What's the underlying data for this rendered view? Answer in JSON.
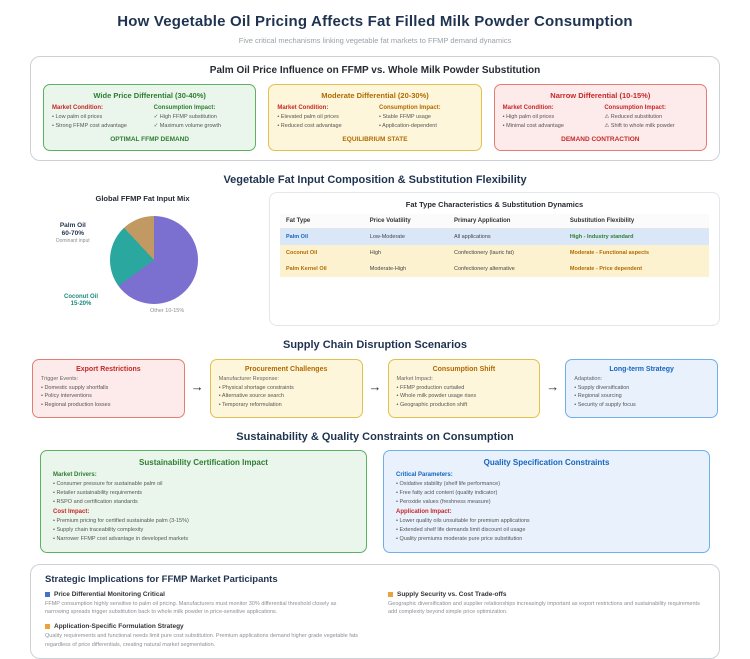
{
  "page": {
    "title": "How Vegetable Oil Pricing Affects Fat Filled Milk Powder Consumption",
    "subtitle": "Five critical mechanisms linking vegetable fat markets to FFMP demand dynamics"
  },
  "colors": {
    "accent_navy": "#1f3350",
    "green": "#2e7d32",
    "orange": "#b26a00",
    "red": "#c62828",
    "blue": "#1565c0",
    "pie_palm": "#7b6fd0",
    "pie_coconut": "#2aa79e",
    "pie_other": "#c09a62"
  },
  "section1": {
    "title": "Palm Oil Price Influence on FFMP vs. Whole Milk Powder Substitution",
    "cards": [
      {
        "title": "Wide Price Differential (30-40%)",
        "left_header": "Market Condition:",
        "left_items": [
          "• Low palm oil prices",
          "• Strong FFMP cost advantage"
        ],
        "right_header": "Consumption Impact:",
        "right_items": [
          "✓ High FFMP substitution",
          "✓ Maximum volume growth"
        ],
        "footer": "OPTIMAL FFMP DEMAND"
      },
      {
        "title": "Moderate Differential (20-30%)",
        "left_header": "Market Condition:",
        "left_items": [
          "• Elevated palm oil prices",
          "• Reduced cost advantage"
        ],
        "right_header": "Consumption Impact:",
        "right_items": [
          "• Stable FFMP usage",
          "• Application-dependent"
        ],
        "footer": "EQUILIBRIUM STATE"
      },
      {
        "title": "Narrow Differential (10-15%)",
        "left_header": "Market Condition:",
        "left_items": [
          "• High palm oil prices",
          "• Minimal cost advantage"
        ],
        "right_header": "Consumption Impact:",
        "right_items": [
          "⚠ Reduced substitution",
          "⚠ Shift to whole milk powder"
        ],
        "footer": "DEMAND CONTRACTION"
      }
    ]
  },
  "section2": {
    "title": "Vegetable Fat Input Composition & Substitution Flexibility",
    "pie_title": "Global FFMP Fat Input Mix",
    "pie_labels": {
      "palm_name": "Palm Oil",
      "palm_range": "60-70%",
      "palm_note": "Dominant input",
      "coconut_name": "Coconut Oil",
      "coconut_range": "15-20%",
      "other_label": "Other 10-15%"
    },
    "table": {
      "title": "Fat Type Characteristics & Substitution Dynamics",
      "headers": [
        "Fat Type",
        "Price Volatility",
        "Primary Application",
        "Substitution Flexibility"
      ],
      "rows": [
        {
          "cells": [
            "Palm Oil",
            "Low-Moderate",
            "All applications",
            "High - Industry standard"
          ]
        },
        {
          "cells": [
            "Coconut Oil",
            "High",
            "Confectionery (lauric fat)",
            "Moderate - Functional aspects"
          ]
        },
        {
          "cells": [
            "Palm Kernel Oil",
            "Moderate-High",
            "Confectionery alternative",
            "Moderate - Price dependent"
          ]
        }
      ]
    }
  },
  "chart_data": {
    "type": "pie",
    "title": "Global FFMP Fat Input Mix",
    "slices": [
      {
        "label": "Palm Oil",
        "range": "60-70%",
        "value": 65,
        "note": "Dominant input",
        "color": "#7b6fd0"
      },
      {
        "label": "Coconut Oil",
        "range": "15-20%",
        "value": 20,
        "color": "#2aa79e"
      },
      {
        "label": "Other",
        "range": "10-15%",
        "value": 15,
        "color": "#c09a62"
      }
    ],
    "legend_position": "labels-around-pie"
  },
  "section3": {
    "title": "Supply Chain Disruption Scenarios",
    "arrow": "→",
    "cards": [
      {
        "title": "Export Restrictions",
        "header": "Trigger Events:",
        "items": [
          "• Domestic supply shortfalls",
          "• Policy interventions",
          "• Regional production losses"
        ]
      },
      {
        "title": "Procurement Challenges",
        "header": "Manufacturer Response:",
        "items": [
          "• Physical shortage constraints",
          "• Alternative source search",
          "• Temporary reformulation"
        ]
      },
      {
        "title": "Consumption Shift",
        "header": "Market Impact:",
        "items": [
          "• FFMP production curtailed",
          "• Whole milk powder usage rises",
          "• Geographic production shift"
        ]
      },
      {
        "title": "Long-term Strategy",
        "header": "Adaptation:",
        "items": [
          "• Supply diversification",
          "• Regional sourcing",
          "• Security of supply focus"
        ]
      }
    ]
  },
  "section4": {
    "title": "Sustainability & Quality Constraints on Consumption",
    "cards": [
      {
        "title": "Sustainability Certification Impact",
        "h1": "Market Drivers:",
        "items1": [
          "• Consumer pressure for sustainable palm oil",
          "• Retailer sustainability requirements",
          "• RSPO and certification standards"
        ],
        "h2": "Cost Impact:",
        "items2": [
          "• Premium pricing for certified sustainable palm (3-15%)",
          "• Supply chain traceability complexity",
          "• Narrower FFMP cost advantage in developed markets"
        ]
      },
      {
        "title": "Quality Specification Constraints",
        "h1": "Critical Parameters:",
        "items1": [
          "• Oxidative stability (shelf life performance)",
          "• Free fatty acid content (quality indicator)",
          "• Peroxide values (freshness measure)"
        ],
        "h2": "Application Impact:",
        "items2": [
          "• Lower quality oils unsuitable for premium applications",
          "• Extended shelf life demands limit discount oil usage",
          "• Quality premiums moderate pure price substitution"
        ]
      }
    ]
  },
  "section5": {
    "title": "Strategic Implications for FFMP Market Participants",
    "items": [
      {
        "title": "Price Differential Monitoring Critical",
        "body": "FFMP consumption highly sensitive to palm oil pricing. Manufacturers must monitor 30% differential threshold closely as narrowing spreads trigger substitution back to whole milk powder in price-sensitive applications."
      },
      {
        "title": "Supply Security vs. Cost Trade-offs",
        "body": "Geographic diversification and supplier relationships increasingly important as export restrictions and sustainability requirements add complexity beyond simple price optimization."
      },
      {
        "title": "Application-Specific Formulation Strategy",
        "body": "Quality requirements and functional needs limit pure cost substitution. Premium applications demand higher grade vegetable fats regardless of price differentials, creating natural market segmentation."
      }
    ]
  }
}
